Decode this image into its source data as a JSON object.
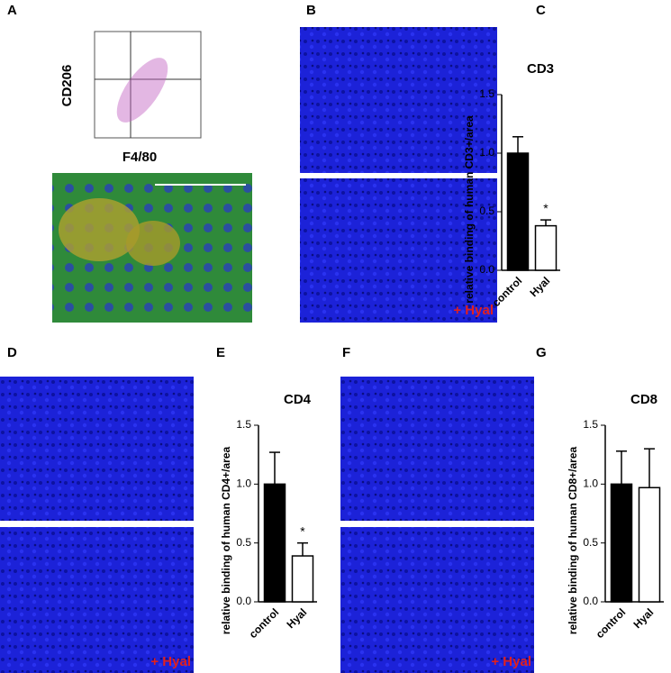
{
  "panels": [
    "A",
    "B",
    "C",
    "D",
    "E",
    "F",
    "G"
  ],
  "flow": {
    "x_label": "F4/80",
    "y_label": "CD206"
  },
  "treatment_label": "+ Hyal",
  "chart_data": [
    {
      "type": "bar",
      "title": "CD3",
      "y_label": "relative binding of human CD3+/area",
      "categories": [
        "control",
        "Hyal"
      ],
      "values": [
        1.0,
        0.38
      ],
      "errors": [
        0.14,
        0.05
      ],
      "colors": [
        "#000000",
        "#ffffff"
      ],
      "ylim": [
        0,
        1.5
      ],
      "yticks": [
        {
          "value": 0,
          "label": "0.0"
        },
        {
          "value": 0.5,
          "label": "0.5"
        },
        {
          "value": 1,
          "label": "1.0"
        },
        {
          "value": 1.5,
          "label": "1.5"
        }
      ],
      "annotation": "*"
    },
    {
      "type": "bar",
      "title": "CD4",
      "y_label": "relative binding of human CD4+/area",
      "categories": [
        "control",
        "Hyal"
      ],
      "values": [
        1.0,
        0.39
      ],
      "errors": [
        0.27,
        0.11
      ],
      "colors": [
        "#000000",
        "#ffffff"
      ],
      "ylim": [
        0,
        1.5
      ],
      "yticks": [
        {
          "value": 0,
          "label": "0.0"
        },
        {
          "value": 0.5,
          "label": "0.5"
        },
        {
          "value": 1,
          "label": "1.0"
        },
        {
          "value": 1.5,
          "label": "1.5"
        }
      ],
      "annotation": "*"
    },
    {
      "type": "bar",
      "title": "CD8",
      "y_label": "relative binding of human CD8+/area",
      "categories": [
        "control",
        "Hyal"
      ],
      "values": [
        1.0,
        0.97
      ],
      "errors": [
        0.28,
        0.33
      ],
      "colors": [
        "#000000",
        "#ffffff"
      ],
      "ylim": [
        0,
        1.5
      ],
      "yticks": [
        {
          "value": 0,
          "label": "0.0"
        },
        {
          "value": 0.5,
          "label": "0.5"
        },
        {
          "value": 1,
          "label": "1.0"
        },
        {
          "value": 1.5,
          "label": "1.5"
        }
      ]
    }
  ]
}
